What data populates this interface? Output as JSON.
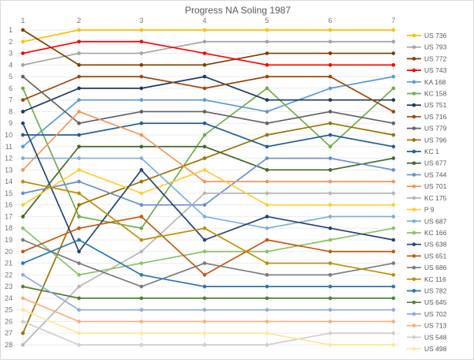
{
  "title": "Progress NA Soling 1987",
  "axes": {
    "x_ticks": [
      "1",
      "2",
      "3",
      "4",
      "5",
      "6",
      "7"
    ],
    "y_ticks": [
      "1",
      "2",
      "3",
      "4",
      "5",
      "6",
      "7",
      "8",
      "9",
      "10",
      "11",
      "12",
      "13",
      "14",
      "15",
      "16",
      "17",
      "18",
      "19",
      "20",
      "21",
      "22",
      "23",
      "24",
      "25",
      "26",
      "27",
      "28"
    ]
  },
  "styles": {
    "grid_color": "#ededed",
    "tick_color": "#757575",
    "title_color": "#595959",
    "background": "#ffffff"
  },
  "chart_data": {
    "type": "line",
    "subtype": "bump-rank-progress",
    "title": "Progress NA Soling 1987",
    "xlabel": "",
    "ylabel": "",
    "x": [
      1,
      2,
      3,
      4,
      5,
      6,
      7
    ],
    "x_axis_position": "top",
    "y_axis": "rank, 1 = best, inverted top-to-bottom",
    "ylim": [
      1,
      28
    ],
    "grid": true,
    "legend_position": "right",
    "series": [
      {
        "name": "US 736",
        "color": "#FFC000",
        "ranks": [
          2,
          1,
          1,
          1,
          1,
          1,
          1
        ]
      },
      {
        "name": "US 793",
        "color": "#A5A5A5",
        "ranks": [
          4,
          3,
          3,
          2,
          2,
          2,
          2
        ]
      },
      {
        "name": "US 772",
        "color": "#7B3F00",
        "ranks": [
          1,
          4,
          4,
          4,
          3,
          3,
          3
        ]
      },
      {
        "name": "US 743",
        "color": "#FF0000",
        "ranks": [
          3,
          2,
          2,
          3,
          4,
          4,
          4
        ]
      },
      {
        "name": "KA 168",
        "color": "#5B9BD5",
        "ranks": [
          11,
          7,
          7,
          7,
          8,
          6,
          5
        ]
      },
      {
        "name": "KC 158",
        "color": "#70AD47",
        "ranks": [
          6,
          17,
          18,
          10,
          6,
          11,
          6
        ]
      },
      {
        "name": "US 751",
        "color": "#1F3864",
        "ranks": [
          8,
          6,
          6,
          5,
          7,
          7,
          7
        ]
      },
      {
        "name": "US 716",
        "color": "#9E480E",
        "ranks": [
          7,
          5,
          5,
          6,
          5,
          5,
          8
        ]
      },
      {
        "name": "US 779",
        "color": "#636363",
        "ranks": [
          5,
          9,
          8,
          8,
          9,
          8,
          9
        ]
      },
      {
        "name": "US 796",
        "color": "#997300",
        "ranks": [
          27,
          16,
          14,
          12,
          10,
          9,
          10
        ]
      },
      {
        "name": "KC 1",
        "color": "#255E91",
        "ranks": [
          10,
          10,
          9,
          9,
          11,
          10,
          11
        ]
      },
      {
        "name": "US 677",
        "color": "#43682B",
        "ranks": [
          17,
          11,
          11,
          11,
          13,
          13,
          12
        ]
      },
      {
        "name": "US 744",
        "color": "#698ED0",
        "ranks": [
          15,
          14,
          16,
          16,
          12,
          12,
          13
        ]
      },
      {
        "name": "US 701",
        "color": "#F1975A",
        "ranks": [
          13,
          8,
          10,
          14,
          14,
          14,
          14
        ]
      },
      {
        "name": "KC 175",
        "color": "#B7B7B7",
        "ranks": [
          28,
          23,
          20,
          15,
          15,
          15,
          15
        ]
      },
      {
        "name": "P 9",
        "color": "#FFCD33",
        "ranks": [
          16,
          13,
          15,
          13,
          16,
          16,
          16
        ]
      },
      {
        "name": "US 687",
        "color": "#7CAFDD",
        "ranks": [
          12,
          12,
          12,
          17,
          18,
          17,
          17
        ]
      },
      {
        "name": "KC 166",
        "color": "#8CC168",
        "ranks": [
          18,
          22,
          21,
          20,
          20,
          19,
          18
        ]
      },
      {
        "name": "US 638",
        "color": "#264478",
        "ranks": [
          9,
          20,
          13,
          19,
          17,
          18,
          19
        ]
      },
      {
        "name": "US 651",
        "color": "#C55A11",
        "ranks": [
          20,
          18,
          17,
          22,
          19,
          20,
          20
        ]
      },
      {
        "name": "US 686",
        "color": "#7B7B7B",
        "ranks": [
          19,
          21,
          23,
          21,
          22,
          22,
          21
        ]
      },
      {
        "name": "KC 116",
        "color": "#BF8F00",
        "ranks": [
          14,
          15,
          19,
          18,
          21,
          21,
          22
        ]
      },
      {
        "name": "US 782",
        "color": "#2E75B6",
        "ranks": [
          21,
          19,
          22,
          23,
          23,
          23,
          23
        ]
      },
      {
        "name": "US 645",
        "color": "#538135",
        "ranks": [
          23,
          24,
          24,
          24,
          24,
          24,
          24
        ]
      },
      {
        "name": "US 702",
        "color": "#8FAADC",
        "ranks": [
          22,
          25,
          25,
          25,
          25,
          25,
          25
        ]
      },
      {
        "name": "US 713",
        "color": "#F4B183",
        "ranks": [
          24,
          26,
          26,
          26,
          26,
          26,
          26
        ]
      },
      {
        "name": "US 548",
        "color": "#D0CECE",
        "ranks": [
          26,
          28,
          28,
          28,
          28,
          27,
          27
        ]
      },
      {
        "name": "US 498",
        "color": "#FFE699",
        "ranks": [
          25,
          27,
          27,
          27,
          27,
          28,
          28
        ]
      }
    ]
  }
}
